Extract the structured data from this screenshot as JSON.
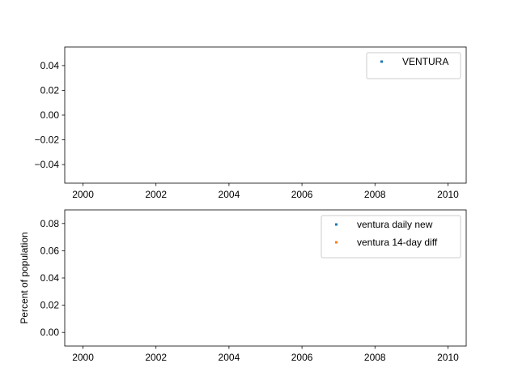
{
  "chart_data": [
    {
      "type": "scatter",
      "title": "",
      "xlabel": "",
      "ylabel": "",
      "xlim": [
        1999.5,
        2010.5
      ],
      "ylim": [
        -0.055,
        0.055
      ],
      "xticks": [
        2000,
        2002,
        2004,
        2006,
        2008,
        2010
      ],
      "yticks": [
        -0.04,
        -0.02,
        0.0,
        0.02,
        0.04
      ],
      "ytick_labels": [
        "−0.04",
        "−0.02",
        "0.00",
        "0.02",
        "0.04"
      ],
      "grid": false,
      "legend_position": "top-right",
      "series": [
        {
          "name": "VENTURA",
          "color": "#1f77b4",
          "x": [],
          "y": []
        }
      ]
    },
    {
      "type": "scatter",
      "title": "",
      "xlabel": "",
      "ylabel": "Percent of population",
      "xlim": [
        1999.5,
        2010.5
      ],
      "ylim": [
        -0.01,
        0.09
      ],
      "xticks": [
        2000,
        2002,
        2004,
        2006,
        2008,
        2010
      ],
      "yticks": [
        0.0,
        0.02,
        0.04,
        0.06,
        0.08
      ],
      "ytick_labels": [
        "0.00",
        "0.02",
        "0.04",
        "0.06",
        "0.08"
      ],
      "grid": false,
      "legend_position": "top-right",
      "series": [
        {
          "name": "ventura daily new",
          "color": "#1f77b4",
          "x": [],
          "y": []
        },
        {
          "name": "ventura 14-day diff",
          "color": "#ff7f0e",
          "x": [],
          "y": []
        }
      ]
    }
  ]
}
